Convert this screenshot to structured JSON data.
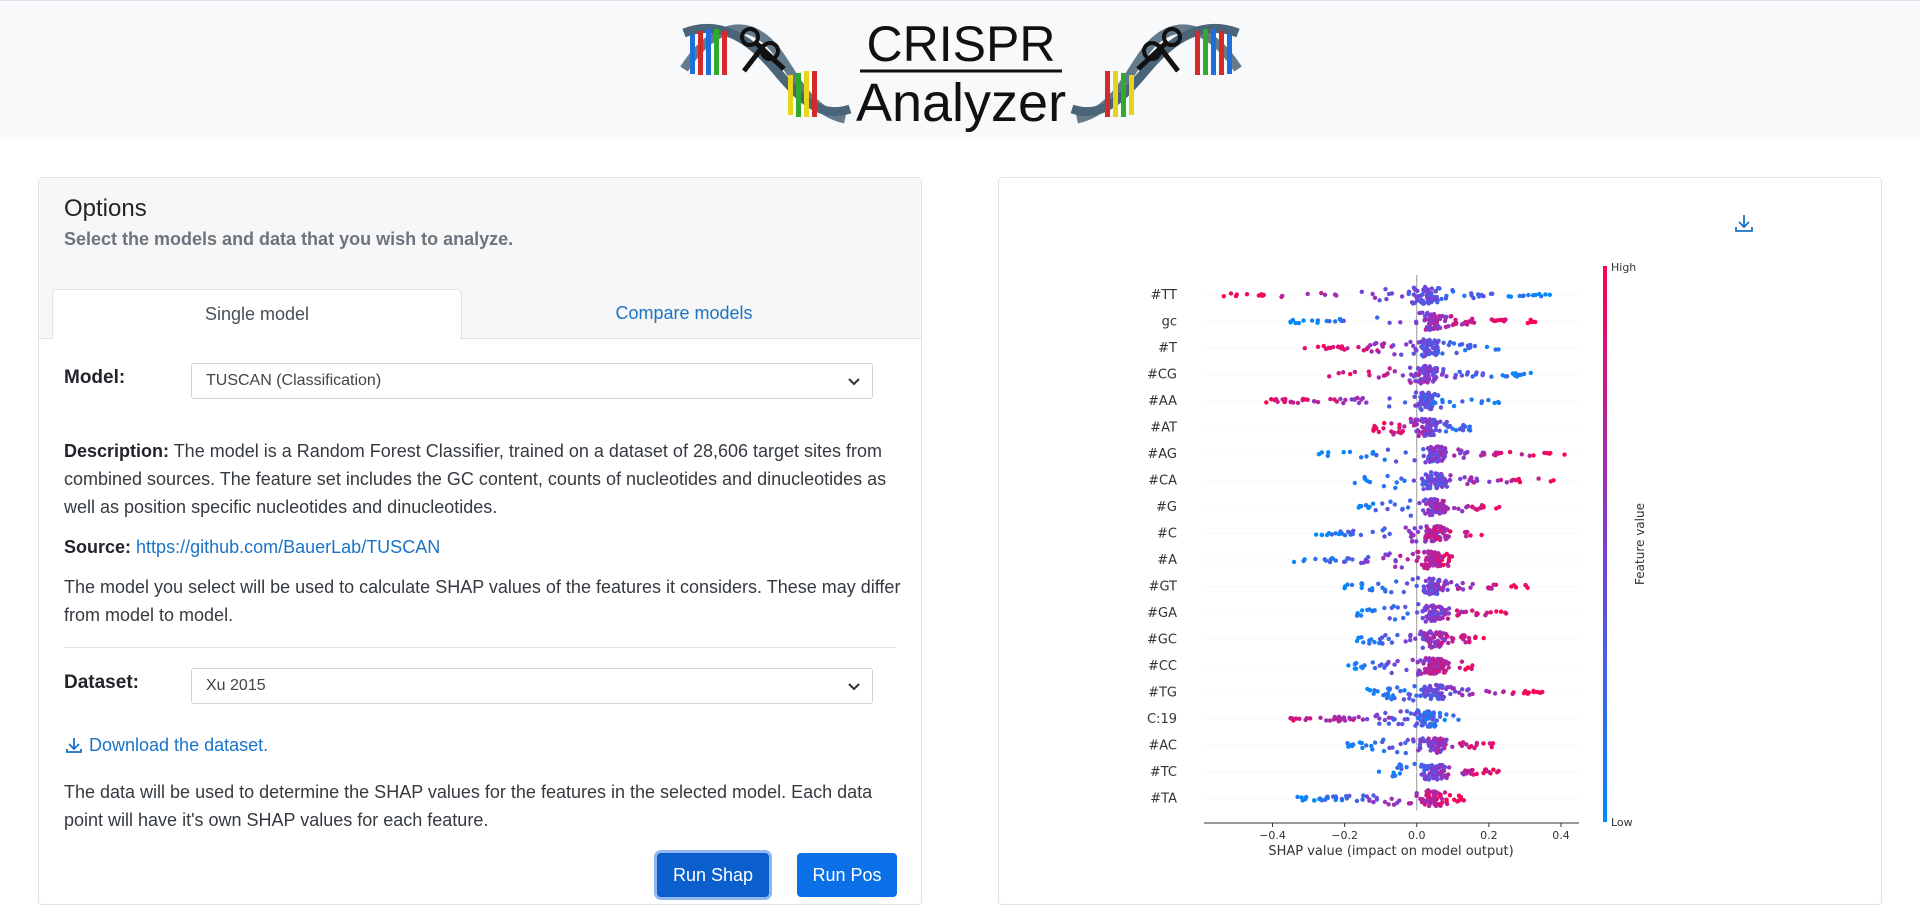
{
  "header": {
    "logo_title_line1": "CRISPR",
    "logo_title_line2": "Analyzer"
  },
  "options": {
    "title": "Options",
    "subtitle": "Select the models and data that you wish to analyze.",
    "tabs": [
      {
        "label": "Single model",
        "active": true
      },
      {
        "label": "Compare models",
        "active": false
      }
    ],
    "model_label": "Model:",
    "model_selected": "TUSCAN (Classification)",
    "description_label": "Description:",
    "description_text": " The model is a Random Forest Classifier, trained on a dataset of 28,606 target sites from combined sources. The feature set includes the GC content, counts of nucleotides and dinucleotides as well as position specific nucleotides and dinucleotides.",
    "source_label": "Source:",
    "source_link": "https://github.com/BauerLab/TUSCAN",
    "model_note": "The model you select will be used to calculate SHAP values of the features it considers. These may differ from model to model.",
    "dataset_label": "Dataset:",
    "dataset_selected": "Xu 2015",
    "download_link": "Download the dataset.",
    "data_note": "The data will be used to determine the SHAP values for the features in the selected model. Each data point will have it's own SHAP values for each feature.",
    "run_shap_label": "Run Shap",
    "run_pos_label": "Run Pos"
  },
  "colors": {
    "accent": "#0b70e8",
    "link": "#1a73c7",
    "high": "#ff0052",
    "low": "#008bfb"
  },
  "chart_data": {
    "type": "scatter",
    "subtype": "shap-beeswarm",
    "features": [
      "#TT",
      "gc",
      "#T",
      "#CG",
      "#AA",
      "#AT",
      "#AG",
      "#CA",
      "#G",
      "#C",
      "#A",
      "#GT",
      "#GA",
      "#GC",
      "#CC",
      "#TG",
      "C:19",
      "#AC",
      "#TC",
      "#TA"
    ],
    "feature_ranges": [
      [
        -0.55,
        0.38
      ],
      [
        -0.35,
        0.33
      ],
      [
        -0.32,
        0.25
      ],
      [
        -0.26,
        0.32
      ],
      [
        -0.42,
        0.24
      ],
      [
        -0.12,
        0.18
      ],
      [
        -0.28,
        0.41
      ],
      [
        -0.18,
        0.38
      ],
      [
        -0.18,
        0.25
      ],
      [
        -0.28,
        0.18
      ],
      [
        -0.35,
        0.17
      ],
      [
        -0.2,
        0.31
      ],
      [
        -0.17,
        0.25
      ],
      [
        -0.18,
        0.19
      ],
      [
        -0.19,
        0.16
      ],
      [
        -0.14,
        0.35
      ],
      [
        -0.37,
        0.15
      ],
      [
        -0.2,
        0.23
      ],
      [
        -0.11,
        0.23
      ],
      [
        -0.34,
        0.14
      ]
    ],
    "high_side": [
      "left",
      "right",
      "left",
      "left",
      "left",
      "left",
      "right",
      "right",
      "right",
      "right",
      "right",
      "right",
      "right",
      "right",
      "right",
      "right",
      "left",
      "right",
      "right",
      "right"
    ],
    "xlabel": "SHAP value (impact on model output)",
    "xticks": [
      -0.4,
      -0.2,
      0.0,
      0.2,
      0.4
    ],
    "xlim": [
      -0.59,
      0.45
    ],
    "colorbar_label": "Feature value",
    "colorbar_high": "High",
    "colorbar_low": "Low"
  }
}
